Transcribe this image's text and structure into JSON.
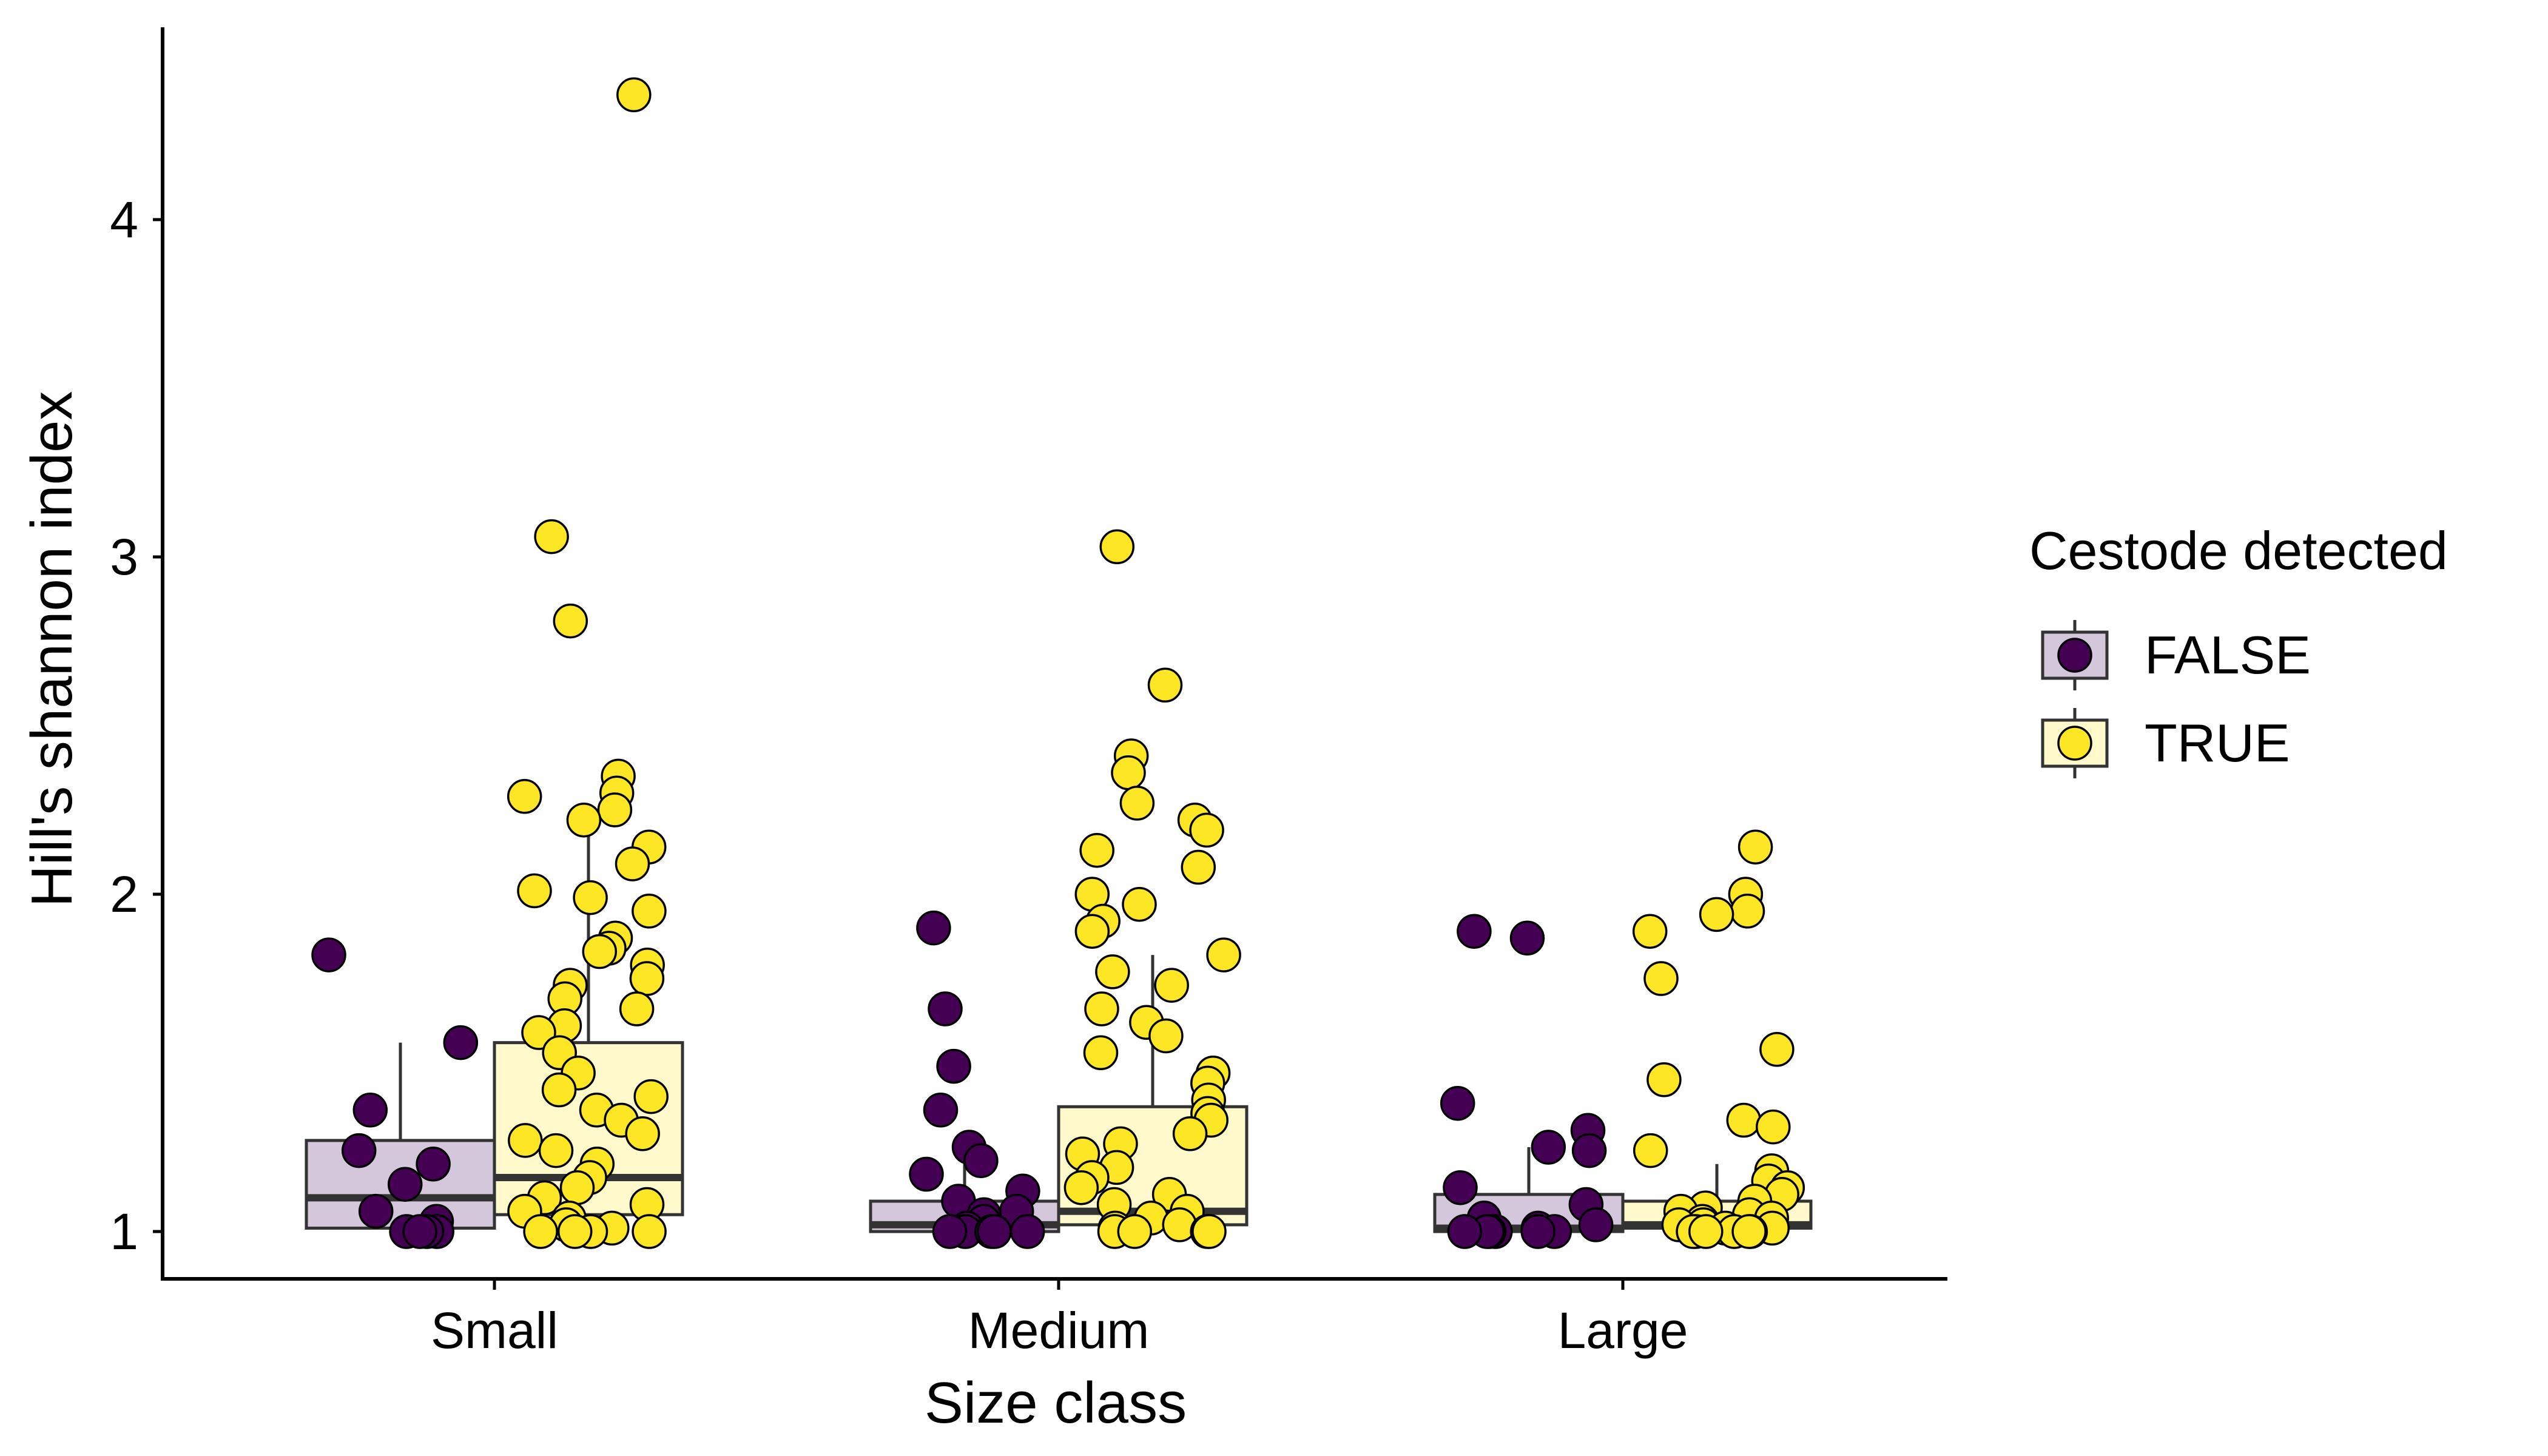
{
  "chart_data": {
    "type": "box",
    "xlabel": "Size class",
    "ylabel": "Hill's shannon index",
    "categories": [
      "Small",
      "Medium",
      "Large"
    ],
    "yticks": [
      1,
      2,
      3,
      4
    ],
    "ylim": [
      0.83,
      4.55
    ],
    "grid": false,
    "legend": {
      "title": "Cestode detected",
      "placement": "right",
      "entries": [
        "FALSE",
        "TRUE"
      ]
    },
    "colors": {
      "FALSE": "#440154",
      "TRUE": "#FDE725",
      "FALSE_box": "#D5C7DB",
      "TRUE_box": "#FFF9CB",
      "box_edge": "#333333",
      "axis": "#000000",
      "point_edge": "#000000"
    },
    "boxes": [
      {
        "category": "Small",
        "group": "FALSE",
        "q1": 1.01,
        "median": 1.1,
        "q3": 1.27,
        "whisker_low": 1.0,
        "whisker_high": 1.56
      },
      {
        "category": "Small",
        "group": "TRUE",
        "q1": 1.05,
        "median": 1.16,
        "q3": 1.56,
        "whisker_low": 1.0,
        "whisker_high": 2.23
      },
      {
        "category": "Medium",
        "group": "FALSE",
        "q1": 1.0,
        "median": 1.02,
        "q3": 1.09,
        "whisker_low": 1.0,
        "whisker_high": 1.21
      },
      {
        "category": "Medium",
        "group": "TRUE",
        "q1": 1.02,
        "median": 1.06,
        "q3": 1.37,
        "whisker_low": 1.0,
        "whisker_high": 1.82
      },
      {
        "category": "Large",
        "group": "FALSE",
        "q1": 1.0,
        "median": 1.01,
        "q3": 1.11,
        "whisker_low": 1.0,
        "whisker_high": 1.25
      },
      {
        "category": "Large",
        "group": "TRUE",
        "q1": 1.01,
        "median": 1.02,
        "q3": 1.09,
        "whisker_low": 1.0,
        "whisker_high": 1.2
      }
    ],
    "points": [
      {
        "category": "Small",
        "group": "FALSE",
        "values": [
          1.82,
          1.56,
          1.36,
          1.24,
          1.2,
          1.14,
          1.06,
          1.03,
          1.0,
          1.0,
          1.0,
          1.0
        ]
      },
      {
        "category": "Small",
        "group": "TRUE",
        "values": [
          4.37,
          3.06,
          2.81,
          2.35,
          2.3,
          2.29,
          2.25,
          2.22,
          2.14,
          2.09,
          2.01,
          1.99,
          1.95,
          1.87,
          1.84,
          1.83,
          1.79,
          1.75,
          1.73,
          1.69,
          1.66,
          1.61,
          1.59,
          1.53,
          1.47,
          1.42,
          1.4,
          1.36,
          1.33,
          1.29,
          1.27,
          1.24,
          1.2,
          1.16,
          1.13,
          1.1,
          1.08,
          1.06,
          1.04,
          1.02,
          1.01,
          1.0,
          1.0,
          1.0,
          1.0
        ]
      },
      {
        "category": "Medium",
        "group": "FALSE",
        "values": [
          1.9,
          1.66,
          1.49,
          1.36,
          1.25,
          1.21,
          1.17,
          1.12,
          1.09,
          1.06,
          1.05,
          1.03,
          1.01,
          1.0,
          1.0,
          1.0,
          1.0,
          1.0
        ]
      },
      {
        "category": "Medium",
        "group": "TRUE",
        "values": [
          3.03,
          2.62,
          2.41,
          2.36,
          2.27,
          2.22,
          2.19,
          2.13,
          2.08,
          2.0,
          1.97,
          1.92,
          1.89,
          1.82,
          1.77,
          1.73,
          1.66,
          1.62,
          1.58,
          1.53,
          1.47,
          1.44,
          1.39,
          1.35,
          1.33,
          1.29,
          1.26,
          1.23,
          1.19,
          1.16,
          1.13,
          1.11,
          1.08,
          1.06,
          1.04,
          1.02,
          1.01,
          1.0,
          1.0,
          1.0,
          1.0
        ]
      },
      {
        "category": "Large",
        "group": "FALSE",
        "values": [
          1.89,
          1.87,
          1.38,
          1.3,
          1.25,
          1.24,
          1.13,
          1.08,
          1.04,
          1.02,
          1.01,
          1.0,
          1.0,
          1.0,
          1.0,
          1.0,
          1.0
        ]
      },
      {
        "category": "Large",
        "group": "TRUE",
        "values": [
          2.14,
          2.0,
          1.95,
          1.94,
          1.89,
          1.75,
          1.54,
          1.45,
          1.33,
          1.31,
          1.24,
          1.18,
          1.15,
          1.13,
          1.11,
          1.09,
          1.07,
          1.06,
          1.05,
          1.04,
          1.03,
          1.02,
          1.02,
          1.01,
          1.01,
          1.0,
          1.0,
          1.0,
          1.0,
          1.0,
          1.0
        ]
      }
    ]
  }
}
